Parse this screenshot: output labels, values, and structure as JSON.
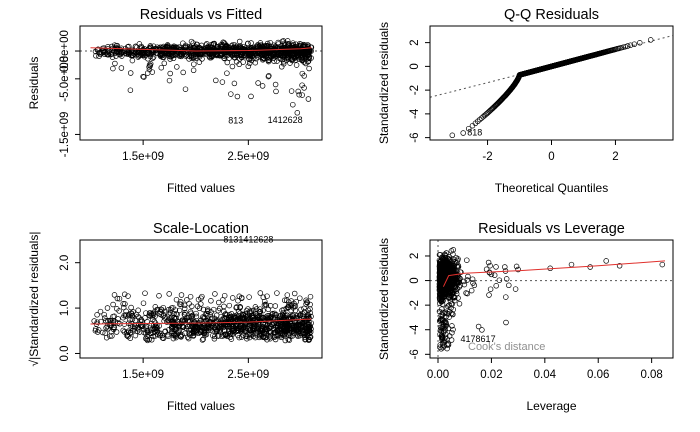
{
  "chart_data": [
    {
      "type": "scatter",
      "title": "Residuals vs Fitted",
      "xlabel": "Fitted values",
      "ylabel": "Residuals",
      "xlim": [
        900000000,
        3200000000
      ],
      "ylim": [
        -1600000000,
        450000000
      ],
      "xticks": [
        {
          "v": 1500000000,
          "label": "1.5e+09"
        },
        {
          "v": 2500000000,
          "label": "2.5e+09"
        }
      ],
      "yticks": [
        {
          "v": -1500000000,
          "label": "-1.5e+09"
        },
        {
          "v": -500000000,
          "label": "-5.0e+08"
        },
        {
          "v": 0,
          "label": "0.0e+00"
        }
      ],
      "smooth": [
        [
          1000000000,
          60000000
        ],
        [
          1500000000,
          30000000
        ],
        [
          2000000000,
          0
        ],
        [
          2500000000,
          10000000
        ],
        [
          3000000000,
          40000000
        ],
        [
          3100000000,
          60000000
        ]
      ],
      "hline": 0,
      "outlier_labels": [
        {
          "text": "813",
          "x": 2380000000,
          "y": -1300000000
        },
        {
          "text": "1412628",
          "x": 2850000000,
          "y": -1290000000
        }
      ],
      "grid": false
    },
    {
      "type": "scatter",
      "title": "Q-Q Residuals",
      "xlabel": "Theoretical Quantiles",
      "ylabel": "Standardized residuals",
      "xlim": [
        -3.8,
        3.8
      ],
      "ylim": [
        -6.2,
        3.4
      ],
      "xticks": [
        {
          "v": -2,
          "label": "-2"
        },
        {
          "v": 0,
          "label": "0"
        },
        {
          "v": 2,
          "label": "2"
        }
      ],
      "yticks": [
        {
          "v": -6,
          "label": "-6"
        },
        {
          "v": -4,
          "label": "-4"
        },
        {
          "v": -2,
          "label": "-2"
        },
        {
          "v": 0,
          "label": "0"
        },
        {
          "v": 2,
          "label": "2"
        }
      ],
      "refline": [
        [
          -3.8,
          -2.6
        ],
        [
          3.8,
          2.6
        ]
      ],
      "outlier_labels": [
        {
          "text": "818",
          "x": -2.4,
          "y": -5.8
        }
      ],
      "grid": false
    },
    {
      "type": "scatter",
      "title": "Scale-Location",
      "xlabel": "Fitted values",
      "ylabel": "√|Standardized residuals|",
      "xlim": [
        900000000,
        3200000000
      ],
      "ylim": [
        -0.1,
        2.5
      ],
      "xticks": [
        {
          "v": 1500000000,
          "label": "1.5e+09"
        },
        {
          "v": 2500000000,
          "label": "2.5e+09"
        }
      ],
      "yticks": [
        {
          "v": 0,
          "label": "0.0"
        },
        {
          "v": 1,
          "label": "1.0"
        },
        {
          "v": 2,
          "label": "2.0"
        }
      ],
      "smooth": [
        [
          1000000000,
          0.65
        ],
        [
          1500000000,
          0.66
        ],
        [
          2000000000,
          0.67
        ],
        [
          2500000000,
          0.69
        ],
        [
          3100000000,
          0.76
        ]
      ],
      "outlier_labels": [
        {
          "text": "8131412628",
          "x": 2500000000,
          "y": 2.45
        }
      ],
      "grid": false
    },
    {
      "type": "scatter",
      "title": "Residuals vs Leverage",
      "xlabel": "Leverage",
      "ylabel": "Standardized residuals",
      "xlim": [
        -0.003,
        0.088
      ],
      "ylim": [
        -6.3,
        3.3
      ],
      "xticks": [
        {
          "v": 0,
          "label": "0.00"
        },
        {
          "v": 0.02,
          "label": "0.02"
        },
        {
          "v": 0.04,
          "label": "0.04"
        },
        {
          "v": 0.06,
          "label": "0.06"
        },
        {
          "v": 0.08,
          "label": "0.08"
        }
      ],
      "yticks": [
        {
          "v": -6,
          "label": "-6"
        },
        {
          "v": -4,
          "label": "-4"
        },
        {
          "v": -2,
          "label": "-2"
        },
        {
          "v": 0,
          "label": "0"
        },
        {
          "v": 2,
          "label": "2"
        }
      ],
      "smooth": [
        [
          0.002,
          -0.5
        ],
        [
          0.004,
          0.4
        ],
        [
          0.01,
          0.6
        ],
        [
          0.03,
          0.8
        ],
        [
          0.06,
          1.2
        ],
        [
          0.085,
          1.6
        ]
      ],
      "hline": 0,
      "vline": 0,
      "outlier_labels": [
        {
          "text": "4178617",
          "x": 0.015,
          "y": -5.0
        }
      ],
      "legend_text": "Cook's distance",
      "grid": false
    }
  ]
}
